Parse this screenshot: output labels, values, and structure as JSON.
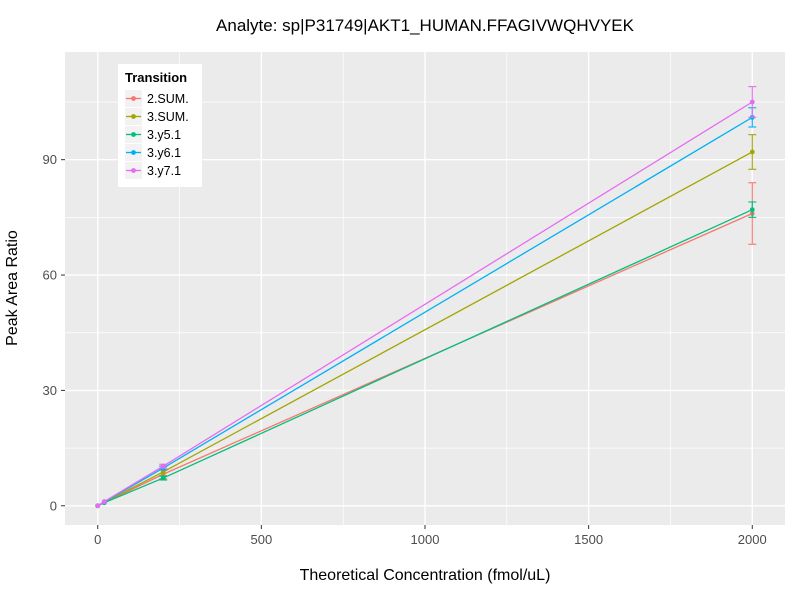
{
  "title": "Analyte: sp|P31749|AKT1_HUMAN.FFAGIVWQHVYEK",
  "chart_data": {
    "type": "line",
    "title": "Analyte: sp|P31749|AKT1_HUMAN.FFAGIVWQHVYEK",
    "xlabel": "Theoretical Concentration (fmol/uL)",
    "ylabel": "Peak Area Ratio",
    "xlim": [
      -100,
      2100
    ],
    "ylim": [
      -5,
      118
    ],
    "x_ticks": [
      0,
      500,
      1000,
      1500,
      2000
    ],
    "y_ticks": [
      0,
      30,
      60,
      90
    ],
    "x_minor_ticks": [
      250,
      750,
      1250,
      1750
    ],
    "y_minor_ticks": [
      15,
      45,
      75,
      105
    ],
    "grid": true,
    "panel_bg": "#EBEBEB",
    "grid_color": "#FFFFFF",
    "legend": {
      "title": "Transition",
      "position": "top-left-inside"
    },
    "x": [
      0,
      20,
      200,
      2000
    ],
    "series": [
      {
        "name": "2.SUM.",
        "color": "#F8766D",
        "y": [
          0,
          0.8,
          8.2,
          76
        ],
        "yerr": [
          0,
          0,
          1.2,
          8
        ]
      },
      {
        "name": "3.SUM.",
        "color": "#A3A500",
        "y": [
          0,
          0.9,
          8.8,
          92
        ],
        "yerr": [
          0,
          0,
          1.0,
          4.5
        ]
      },
      {
        "name": "3.y5.1",
        "color": "#00BF7D",
        "y": [
          0,
          0.8,
          7.2,
          77
        ],
        "yerr": [
          0,
          0,
          0.5,
          2
        ]
      },
      {
        "name": "3.y6.1",
        "color": "#00B0F6",
        "y": [
          0,
          1.0,
          9.8,
          101
        ],
        "yerr": [
          0,
          0,
          0.5,
          2.5
        ]
      },
      {
        "name": "3.y7.1",
        "color": "#E76BF3",
        "y": [
          0,
          1.1,
          10.3,
          105
        ],
        "yerr": [
          0,
          0,
          0.5,
          4
        ]
      }
    ]
  }
}
